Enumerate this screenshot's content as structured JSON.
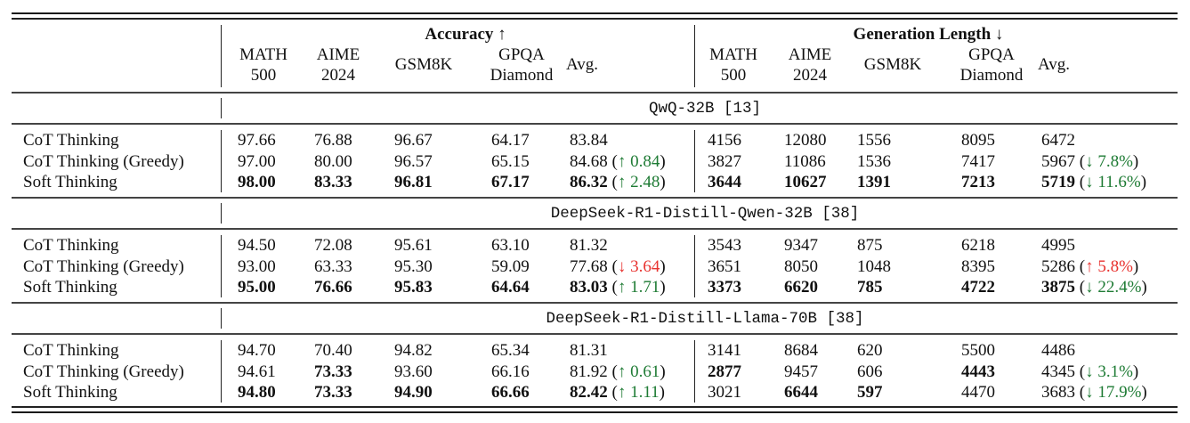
{
  "header": {
    "groups": [
      {
        "label": "Accuracy ↑"
      },
      {
        "label": "Generation Length ↓"
      }
    ],
    "columns": [
      {
        "line1": "MATH",
        "line2": "500"
      },
      {
        "line1": "AIME",
        "line2": "2024"
      },
      {
        "line1": "GSM8K",
        "line2": ""
      },
      {
        "line1": "GPQA",
        "line2": "Diamond"
      },
      {
        "line1": "Avg.",
        "line2": ""
      }
    ]
  },
  "colors": {
    "improve": "#1e7b34",
    "regress": "#e8322f"
  },
  "sections": [
    {
      "model": "QwQ-32B [13]",
      "rows": [
        {
          "method": "CoT Thinking",
          "acc": [
            {
              "v": "97.66"
            },
            {
              "v": "76.88"
            },
            {
              "v": "96.67"
            },
            {
              "v": "64.17"
            },
            {
              "v": "83.84"
            }
          ],
          "acc_delta": null,
          "len": [
            {
              "v": "4156"
            },
            {
              "v": "12080"
            },
            {
              "v": "1556"
            },
            {
              "v": "8095"
            },
            {
              "v": "6472"
            }
          ],
          "len_delta": null
        },
        {
          "method": "CoT Thinking (Greedy)",
          "acc": [
            {
              "v": "97.00"
            },
            {
              "v": "80.00"
            },
            {
              "v": "96.57"
            },
            {
              "v": "65.15"
            },
            {
              "v": "84.68"
            }
          ],
          "acc_delta": {
            "arrow": "↑",
            "value": "0.84",
            "tone": "good"
          },
          "len": [
            {
              "v": "3827"
            },
            {
              "v": "11086"
            },
            {
              "v": "1536"
            },
            {
              "v": "7417"
            },
            {
              "v": "5967"
            }
          ],
          "len_delta": {
            "arrow": "↓",
            "value": "7.8%",
            "tone": "good"
          }
        },
        {
          "method": "Soft Thinking",
          "acc": [
            {
              "v": "98.00",
              "b": true
            },
            {
              "v": "83.33",
              "b": true
            },
            {
              "v": "96.81",
              "b": true
            },
            {
              "v": "67.17",
              "b": true
            },
            {
              "v": "86.32",
              "b": true
            }
          ],
          "acc_delta": {
            "arrow": "↑",
            "value": "2.48",
            "tone": "good"
          },
          "len": [
            {
              "v": "3644",
              "b": true
            },
            {
              "v": "10627",
              "b": true
            },
            {
              "v": "1391",
              "b": true
            },
            {
              "v": "7213",
              "b": true
            },
            {
              "v": "5719",
              "b": true
            }
          ],
          "len_delta": {
            "arrow": "↓",
            "value": "11.6%",
            "tone": "good"
          }
        }
      ]
    },
    {
      "model": "DeepSeek-R1-Distill-Qwen-32B [38]",
      "rows": [
        {
          "method": "CoT Thinking",
          "acc": [
            {
              "v": "94.50"
            },
            {
              "v": "72.08"
            },
            {
              "v": "95.61"
            },
            {
              "v": "63.10"
            },
            {
              "v": "81.32"
            }
          ],
          "acc_delta": null,
          "len": [
            {
              "v": "3543"
            },
            {
              "v": "9347"
            },
            {
              "v": "875"
            },
            {
              "v": "6218"
            },
            {
              "v": "4995"
            }
          ],
          "len_delta": null
        },
        {
          "method": "CoT Thinking (Greedy)",
          "acc": [
            {
              "v": "93.00"
            },
            {
              "v": "63.33"
            },
            {
              "v": "95.30"
            },
            {
              "v": "59.09"
            },
            {
              "v": "77.68"
            }
          ],
          "acc_delta": {
            "arrow": "↓",
            "value": "3.64",
            "tone": "bad"
          },
          "len": [
            {
              "v": "3651"
            },
            {
              "v": "8050"
            },
            {
              "v": "1048"
            },
            {
              "v": "8395"
            },
            {
              "v": "5286"
            }
          ],
          "len_delta": {
            "arrow": "↑",
            "value": "5.8%",
            "tone": "bad"
          }
        },
        {
          "method": "Soft Thinking",
          "acc": [
            {
              "v": "95.00",
              "b": true
            },
            {
              "v": "76.66",
              "b": true
            },
            {
              "v": "95.83",
              "b": true
            },
            {
              "v": "64.64",
              "b": true
            },
            {
              "v": "83.03",
              "b": true
            }
          ],
          "acc_delta": {
            "arrow": "↑",
            "value": "1.71",
            "tone": "good"
          },
          "len": [
            {
              "v": "3373",
              "b": true
            },
            {
              "v": "6620",
              "b": true
            },
            {
              "v": "785",
              "b": true
            },
            {
              "v": "4722",
              "b": true
            },
            {
              "v": "3875",
              "b": true
            }
          ],
          "len_delta": {
            "arrow": "↓",
            "value": "22.4%",
            "tone": "good"
          }
        }
      ]
    },
    {
      "model": "DeepSeek-R1-Distill-Llama-70B [38]",
      "rows": [
        {
          "method": "CoT Thinking",
          "acc": [
            {
              "v": "94.70"
            },
            {
              "v": "70.40"
            },
            {
              "v": "94.82"
            },
            {
              "v": "65.34"
            },
            {
              "v": "81.31"
            }
          ],
          "acc_delta": null,
          "len": [
            {
              "v": "3141"
            },
            {
              "v": "8684"
            },
            {
              "v": "620"
            },
            {
              "v": "5500"
            },
            {
              "v": "4486"
            }
          ],
          "len_delta": null
        },
        {
          "method": "CoT Thinking (Greedy)",
          "acc": [
            {
              "v": "94.61"
            },
            {
              "v": "73.33",
              "b": true
            },
            {
              "v": "93.60"
            },
            {
              "v": "66.16"
            },
            {
              "v": "81.92"
            }
          ],
          "acc_delta": {
            "arrow": "↑",
            "value": "0.61",
            "tone": "good"
          },
          "len": [
            {
              "v": "2877",
              "b": true
            },
            {
              "v": "9457"
            },
            {
              "v": "606"
            },
            {
              "v": "4443",
              "b": true
            },
            {
              "v": "4345"
            }
          ],
          "len_delta": {
            "arrow": "↓",
            "value": "3.1%",
            "tone": "good"
          }
        },
        {
          "method": "Soft Thinking",
          "acc": [
            {
              "v": "94.80",
              "b": true
            },
            {
              "v": "73.33",
              "b": true
            },
            {
              "v": "94.90",
              "b": true
            },
            {
              "v": "66.66",
              "b": true
            },
            {
              "v": "82.42",
              "b": true
            }
          ],
          "acc_delta": {
            "arrow": "↑",
            "value": "1.11",
            "tone": "good"
          },
          "len": [
            {
              "v": "3021"
            },
            {
              "v": "6644",
              "b": true
            },
            {
              "v": "597",
              "b": true
            },
            {
              "v": "4470"
            },
            {
              "v": "3683"
            }
          ],
          "len_delta": {
            "arrow": "↓",
            "value": "17.9%",
            "tone": "good"
          }
        }
      ]
    }
  ]
}
